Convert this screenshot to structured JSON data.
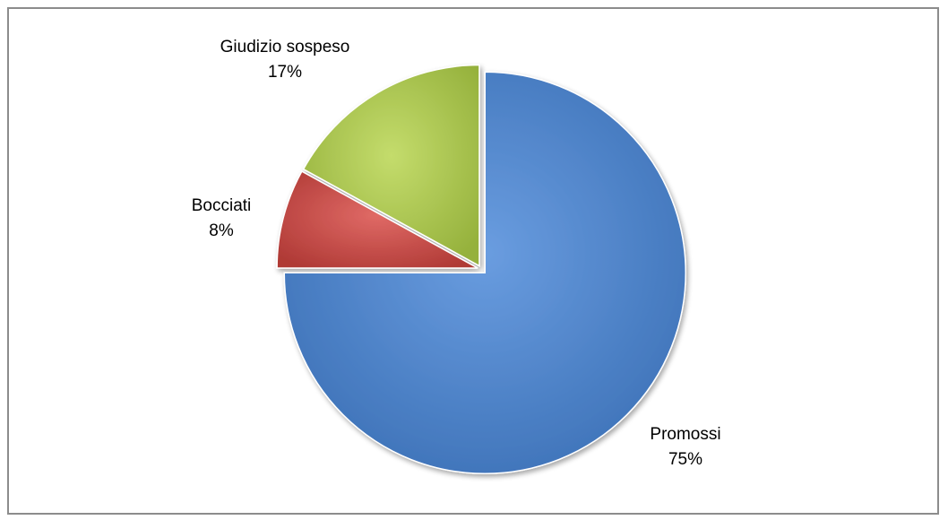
{
  "chart_data": {
    "type": "pie",
    "title": "",
    "legend": "none",
    "labels": [
      "Promossi",
      "Bocciati",
      "Giudizio sospeso"
    ],
    "values": [
      75,
      8,
      17
    ],
    "value_labels": [
      "75%",
      "8%",
      "17%"
    ],
    "colors": [
      "#4f81bd",
      "#c0504d",
      "#9bbb59"
    ]
  }
}
